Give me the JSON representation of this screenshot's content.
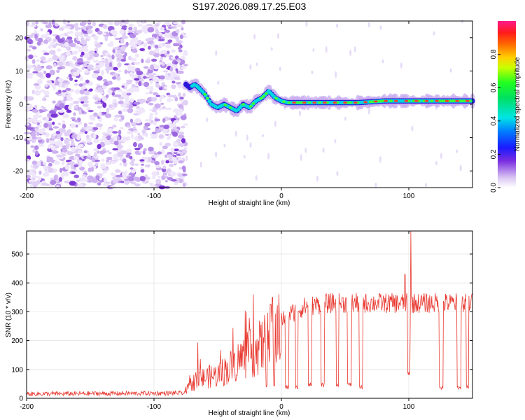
{
  "title": "S197.2026.089.17.25.E03",
  "chart_data": [
    {
      "type": "heatmap",
      "name": "spectrogram",
      "xlabel": "Height of straight line (km)",
      "ylabel": "Frequency (Hz)",
      "xlim": [
        -200,
        150
      ],
      "ylim": [
        -25,
        25
      ],
      "xticks": [
        -200,
        -100,
        0,
        100
      ],
      "yticks": [
        -20,
        -10,
        0,
        10,
        20
      ],
      "noise_region_x": [
        -200,
        -75
      ],
      "signal_track": {
        "x": [
          -75,
          -72,
          -68,
          -65,
          -60,
          -55,
          -50,
          -45,
          -40,
          -35,
          -30,
          -25,
          -20,
          -15,
          -10,
          -5,
          0,
          5,
          10,
          20,
          40,
          60,
          80,
          90,
          100,
          120,
          140,
          150
        ],
        "freq": [
          6,
          5,
          6,
          5,
          3,
          0,
          -1,
          0,
          -1,
          -2,
          0,
          -1,
          1,
          2,
          4,
          2,
          1,
          0.5,
          0.5,
          0.5,
          0.5,
          0.5,
          1,
          1,
          1,
          1,
          1,
          1
        ]
      },
      "colorbar": {
        "label": "Normalized spectral amplitude",
        "range": [
          0,
          1
        ],
        "ticks": [
          0.0,
          0.2,
          0.4,
          0.6,
          0.8
        ],
        "tick_labels": [
          "0.0",
          "0.2",
          "0.4",
          "0.6",
          "0.8"
        ]
      }
    },
    {
      "type": "line",
      "name": "snr",
      "xlabel": "Height of straight line (km)",
      "ylabel": "SNR (10 * v/v)",
      "xlim": [
        -200,
        150
      ],
      "ylim": [
        0,
        580
      ],
      "xticks": [
        -200,
        -100,
        0,
        100
      ],
      "yticks": [
        0,
        100,
        200,
        300,
        400,
        500
      ],
      "color": "#e8382f",
      "series_profile": {
        "x": [
          -200,
          -76,
          -70,
          -60,
          -50,
          -40,
          -30,
          -20,
          -10,
          0,
          10,
          20,
          40,
          60,
          80,
          100,
          120,
          150
        ],
        "level": [
          15,
          18,
          60,
          80,
          90,
          120,
          160,
          180,
          230,
          270,
          300,
          320,
          330,
          330,
          330,
          330,
          330,
          330
        ]
      },
      "dropouts": [
        {
          "x": [
            -12,
            -11
          ],
          "value": 40
        },
        {
          "x": [
            -6,
            -5
          ],
          "value": 40
        },
        {
          "x": [
            3,
            6
          ],
          "value": 30
        },
        {
          "x": [
            11,
            13
          ],
          "value": 30
        },
        {
          "x": [
            21,
            24
          ],
          "value": 40
        },
        {
          "x": [
            31,
            34
          ],
          "value": 40
        },
        {
          "x": [
            43,
            45
          ],
          "value": 40
        },
        {
          "x": [
            52,
            55
          ],
          "value": 40
        },
        {
          "x": [
            61,
            64
          ],
          "value": 30
        },
        {
          "x": [
            99,
            101
          ],
          "value": 80
        },
        {
          "x": [
            124,
            127
          ],
          "value": 30
        },
        {
          "x": [
            138,
            141
          ],
          "value": 30
        },
        {
          "x": [
            145,
            147
          ],
          "value": 30
        }
      ],
      "spikes": [
        {
          "x": -22,
          "value": 360
        },
        {
          "x": -7,
          "value": 350
        },
        {
          "x": 97,
          "value": 430
        },
        {
          "x": 101.5,
          "value": 580
        }
      ]
    }
  ]
}
